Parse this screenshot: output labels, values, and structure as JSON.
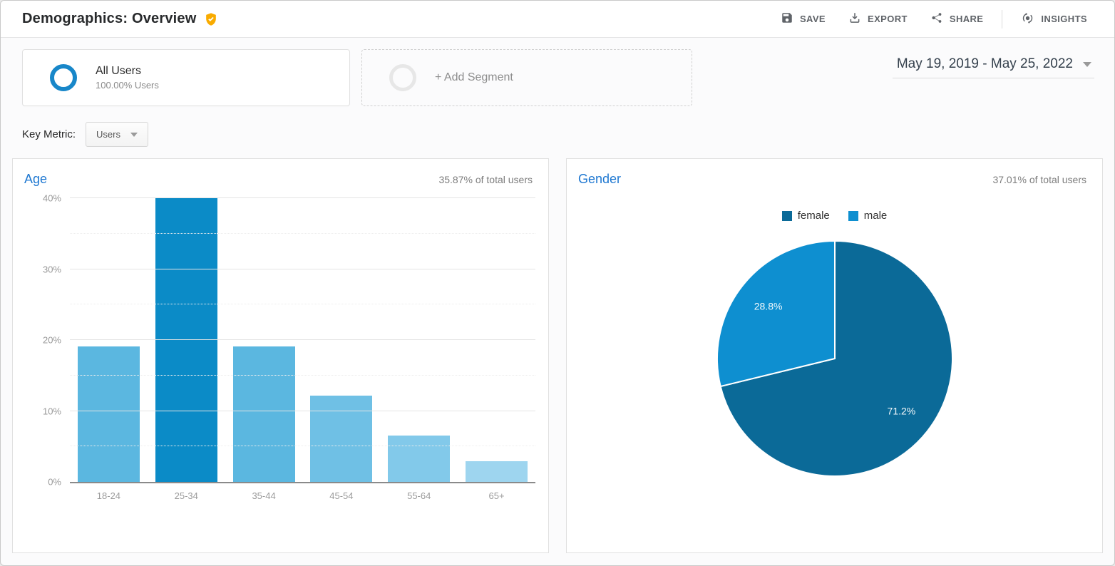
{
  "header": {
    "title": "Demographics: Overview",
    "badge_icon": "gold-shield-check",
    "actions": [
      {
        "label": "SAVE",
        "icon": "save-icon"
      },
      {
        "label": "EXPORT",
        "icon": "export-icon"
      },
      {
        "label": "SHARE",
        "icon": "share-icon"
      },
      {
        "label": "INSIGHTS",
        "icon": "insights-icon"
      }
    ]
  },
  "segment_bar": {
    "all_users": {
      "title": "All Users",
      "subtitle": "100.00% Users"
    },
    "add_segment": {
      "label": "+ Add Segment"
    },
    "date_range": "May 19, 2019 - May 25, 2022"
  },
  "key_metric": {
    "label": "Key Metric:",
    "value": "Users"
  },
  "chart_data": [
    {
      "type": "bar",
      "title": "Age",
      "subtitle": "35.87% of total users",
      "categories": [
        "18-24",
        "25-34",
        "35-44",
        "45-54",
        "55-64",
        "65+"
      ],
      "values": [
        19.1,
        40.0,
        19.1,
        12.2,
        6.5,
        2.9
      ],
      "unit": "%",
      "xlabel": "",
      "ylabel": "",
      "ylim": [
        0,
        40
      ],
      "ytick_step": 10,
      "grid_minor_step": 5,
      "grid": true,
      "bar_colors": [
        "#5bb7e0",
        "#0b8bc7",
        "#5bb7e0",
        "#6fc0e5",
        "#82c9ea",
        "#9ed5ef"
      ],
      "highlight_index": 1
    },
    {
      "type": "pie",
      "title": "Gender",
      "subtitle": "37.01% of total users",
      "labels": [
        "female",
        "male"
      ],
      "values": [
        71.2,
        28.8
      ],
      "slice_labels": [
        "71.2%",
        "28.8%"
      ],
      "colors": [
        "#0b6a98",
        "#0e8fd0"
      ],
      "legend_position": "top",
      "start_angle_deg": 0,
      "direction": "clockwise"
    }
  ],
  "colors": {
    "panel_title_blue": "#1f78d1",
    "all_users_ring": "#1887c9",
    "badge_gold": "#f9ab00",
    "action_gray": "#5f6368",
    "date_text": "#35414d"
  }
}
